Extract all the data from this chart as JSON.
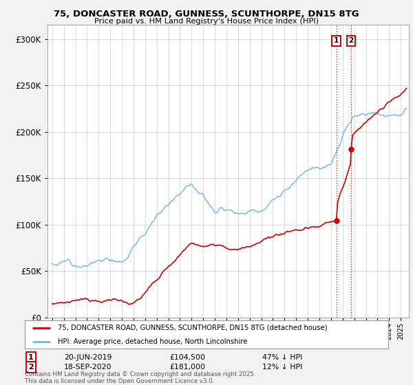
{
  "title_line1": "75, DONCASTER ROAD, GUNNESS, SCUNTHORPE, DN15 8TG",
  "title_line2": "Price paid vs. HM Land Registry's House Price Index (HPI)",
  "hpi_color": "#6cb4e4",
  "price_color": "#cc0000",
  "vline_color": "#cc0000",
  "sale1_price": 104500,
  "sale1_year": 2019.46,
  "sale2_price": 181000,
  "sale2_year": 2020.71,
  "sale1_date_label": "20-JUN-2019",
  "sale2_date_label": "18-SEP-2020",
  "sale1_note": "47% ↓ HPI",
  "sale2_note": "12% ↓ HPI",
  "legend_line1": "75, DONCASTER ROAD, GUNNESS, SCUNTHORPE, DN15 8TG (detached house)",
  "legend_line2": "HPI: Average price, detached house, North Lincolnshire",
  "footer": "Contains HM Land Registry data © Crown copyright and database right 2025.\nThis data is licensed under the Open Government Licence v3.0.",
  "background_color": "#f2f2f2",
  "plot_background": "#ffffff",
  "yticks": [
    0,
    50000,
    100000,
    150000,
    200000,
    250000,
    300000
  ],
  "ylim": [
    0,
    315000
  ],
  "xlim_left": 1994.6,
  "xlim_right": 2025.7
}
